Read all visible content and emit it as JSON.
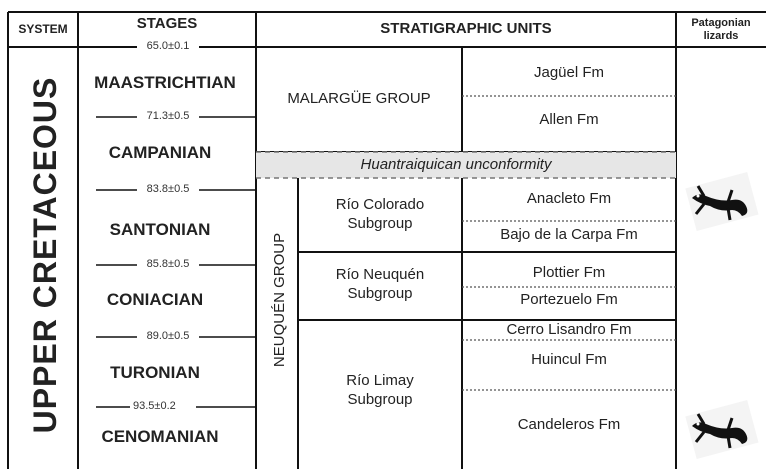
{
  "header": {
    "system": "SYSTEM",
    "stages": "STAGES",
    "units": "STRATIGRAPHIC UNITS",
    "lizards": "Patagonian lizards"
  },
  "system": "UPPER CRETACEOUS",
  "ages": [
    "65.0±0.1",
    "71.3±0.5",
    "83.8±0.5",
    "85.8±0.5",
    "89.0±0.5",
    "93.5±0.2"
  ],
  "stages": [
    "MAASTRICHTIAN",
    "CAMPANIAN",
    "SANTONIAN",
    "CONIACIAN",
    "TURONIAN",
    "CENOMANIAN"
  ],
  "malargue": {
    "name": "MALARGÜE GROUP",
    "formations": [
      "Jagüel Fm",
      "Allen Fm"
    ]
  },
  "unconformity": "Huantraiquican unconformity",
  "neuquen": {
    "name": "NEUQUÉN GROUP",
    "subgroups": [
      {
        "name": "Río Colorado Subgroup",
        "formations": [
          "Anacleto Fm",
          "Bajo de la Carpa Fm"
        ]
      },
      {
        "name": "Río Neuquén Subgroup",
        "formations": [
          "Plottier Fm",
          "Portezuelo Fm"
        ]
      },
      {
        "name": "Río Limay Subgroup",
        "formations": [
          "Cerro Lisandro Fm",
          "Huincul Fm",
          "Candeleros Fm"
        ]
      }
    ]
  }
}
